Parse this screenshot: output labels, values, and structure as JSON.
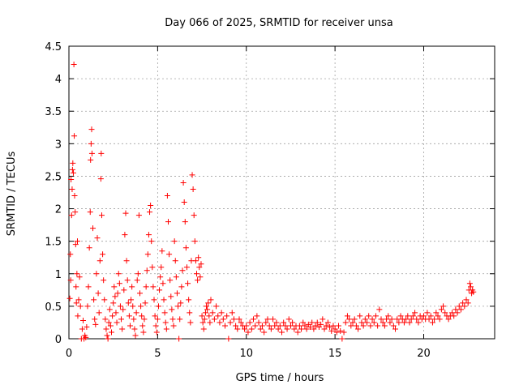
{
  "chart_data": {
    "type": "scatter",
    "title": "Day 066 of 2025, SRMTID for receiver unsa",
    "xlabel": "GPS time / hours",
    "ylabel": "SRMTID / TECUs",
    "xlim": [
      0,
      24
    ],
    "ylim": [
      0,
      4.5
    ],
    "xticks": [
      0,
      5,
      10,
      15,
      20
    ],
    "xtick_labels": [
      "0",
      "5",
      "10",
      "15",
      "20"
    ],
    "yticks": [
      0,
      0.5,
      1,
      1.5,
      2,
      2.5,
      3,
      3.5,
      4,
      4.5
    ],
    "ytick_labels": [
      "0",
      "0.5",
      "1",
      "1.5",
      "2",
      "2.5",
      "3",
      "3.5",
      "4",
      "4.5"
    ],
    "grid": true,
    "marker": "+",
    "color": "#ff0000",
    "series": [
      {
        "name": "SRMTID",
        "points": [
          [
            0.05,
            0.62
          ],
          [
            0.08,
            1.3
          ],
          [
            0.1,
            0.9
          ],
          [
            0.12,
            2.45
          ],
          [
            0.15,
            1.9
          ],
          [
            0.18,
            2.3
          ],
          [
            0.2,
            2.6
          ],
          [
            0.22,
            2.7
          ],
          [
            0.25,
            2.55
          ],
          [
            0.28,
            4.22
          ],
          [
            0.3,
            3.12
          ],
          [
            0.32,
            2.2
          ],
          [
            0.35,
            1.95
          ],
          [
            0.38,
            1.45
          ],
          [
            0.4,
            0.8
          ],
          [
            0.42,
            0.55
          ],
          [
            0.45,
            1.0
          ],
          [
            0.48,
            1.5
          ],
          [
            0.5,
            0.35
          ],
          [
            0.55,
            0.6
          ],
          [
            0.6,
            0.95
          ],
          [
            0.65,
            0.5
          ],
          [
            0.7,
            0.0
          ],
          [
            0.75,
            0.15
          ],
          [
            0.8,
            0.28
          ],
          [
            0.85,
            0.0
          ],
          [
            0.9,
            0.05
          ],
          [
            0.95,
            0.02
          ],
          [
            1.0,
            0.18
          ],
          [
            1.05,
            0.5
          ],
          [
            1.1,
            0.8
          ],
          [
            1.15,
            1.4
          ],
          [
            1.2,
            1.95
          ],
          [
            1.22,
            2.75
          ],
          [
            1.25,
            3.0
          ],
          [
            1.28,
            3.22
          ],
          [
            1.3,
            2.85
          ],
          [
            1.35,
            1.7
          ],
          [
            1.4,
            0.6
          ],
          [
            1.45,
            0.3
          ],
          [
            1.5,
            0.22
          ],
          [
            1.55,
            1.0
          ],
          [
            1.6,
            1.55
          ],
          [
            1.65,
            0.7
          ],
          [
            1.7,
            0.4
          ],
          [
            1.75,
            1.2
          ],
          [
            1.8,
            2.46
          ],
          [
            1.82,
            2.85
          ],
          [
            1.85,
            1.9
          ],
          [
            1.9,
            1.3
          ],
          [
            1.95,
            0.9
          ],
          [
            2.0,
            0.6
          ],
          [
            2.05,
            0.3
          ],
          [
            2.1,
            0.15
          ],
          [
            2.15,
            0.05
          ],
          [
            2.2,
            0.0
          ],
          [
            2.25,
            0.25
          ],
          [
            2.3,
            0.45
          ],
          [
            2.35,
            0.2
          ],
          [
            2.4,
            0.1
          ],
          [
            2.45,
            0.35
          ],
          [
            2.5,
            0.55
          ],
          [
            2.55,
            0.8
          ],
          [
            2.6,
            0.65
          ],
          [
            2.65,
            0.4
          ],
          [
            2.7,
            0.25
          ],
          [
            2.75,
            0.7
          ],
          [
            2.8,
            1.0
          ],
          [
            2.85,
            0.85
          ],
          [
            2.9,
            0.5
          ],
          [
            2.95,
            0.3
          ],
          [
            3.0,
            0.15
          ],
          [
            3.05,
            0.45
          ],
          [
            3.1,
            0.75
          ],
          [
            3.15,
            1.6
          ],
          [
            3.2,
            1.93
          ],
          [
            3.25,
            1.2
          ],
          [
            3.3,
            0.9
          ],
          [
            3.35,
            0.55
          ],
          [
            3.4,
            0.35
          ],
          [
            3.45,
            0.2
          ],
          [
            3.5,
            0.6
          ],
          [
            3.55,
            0.8
          ],
          [
            3.6,
            0.5
          ],
          [
            3.65,
            0.3
          ],
          [
            3.7,
            0.15
          ],
          [
            3.75,
            0.05
          ],
          [
            3.8,
            0.4
          ],
          [
            3.85,
            0.9
          ],
          [
            3.9,
            1.0
          ],
          [
            3.95,
            1.9
          ],
          [
            4.0,
            0.7
          ],
          [
            4.05,
            0.5
          ],
          [
            4.1,
            0.35
          ],
          [
            4.15,
            0.2
          ],
          [
            4.2,
            0.1
          ],
          [
            4.25,
            0.3
          ],
          [
            4.3,
            0.55
          ],
          [
            4.35,
            0.8
          ],
          [
            4.4,
            1.05
          ],
          [
            4.45,
            1.3
          ],
          [
            4.5,
            1.6
          ],
          [
            4.55,
            1.95
          ],
          [
            4.6,
            2.05
          ],
          [
            4.65,
            1.5
          ],
          [
            4.7,
            1.1
          ],
          [
            4.75,
            0.8
          ],
          [
            4.8,
            0.6
          ],
          [
            4.85,
            0.35
          ],
          [
            4.9,
            0.2
          ],
          [
            4.95,
            0.1
          ],
          [
            5.0,
            0.3
          ],
          [
            5.05,
            0.5
          ],
          [
            5.1,
            0.75
          ],
          [
            5.15,
            0.95
          ],
          [
            5.2,
            1.1
          ],
          [
            5.25,
            1.35
          ],
          [
            5.3,
            0.85
          ],
          [
            5.35,
            0.6
          ],
          [
            5.4,
            0.4
          ],
          [
            5.45,
            0.25
          ],
          [
            5.5,
            0.15
          ],
          [
            5.55,
            2.2
          ],
          [
            5.6,
            1.8
          ],
          [
            5.65,
            1.3
          ],
          [
            5.7,
            0.9
          ],
          [
            5.75,
            0.65
          ],
          [
            5.8,
            0.45
          ],
          [
            5.85,
            0.3
          ],
          [
            5.9,
            0.2
          ],
          [
            5.95,
            1.5
          ],
          [
            6.0,
            1.2
          ],
          [
            6.05,
            0.95
          ],
          [
            6.1,
            0.7
          ],
          [
            6.15,
            0.5
          ],
          [
            6.2,
            0.0
          ],
          [
            6.25,
            0.3
          ],
          [
            6.3,
            0.55
          ],
          [
            6.35,
            0.8
          ],
          [
            6.4,
            1.05
          ],
          [
            6.45,
            2.4
          ],
          [
            6.5,
            2.1
          ],
          [
            6.55,
            1.8
          ],
          [
            6.6,
            1.4
          ],
          [
            6.65,
            1.1
          ],
          [
            6.7,
            0.85
          ],
          [
            6.75,
            0.6
          ],
          [
            6.8,
            0.4
          ],
          [
            6.85,
            0.25
          ],
          [
            6.9,
            1.2
          ],
          [
            6.95,
            2.52
          ],
          [
            7.0,
            2.3
          ],
          [
            7.05,
            1.9
          ],
          [
            7.1,
            1.5
          ],
          [
            7.15,
            1.2
          ],
          [
            7.2,
            1.0
          ],
          [
            7.25,
            0.9
          ],
          [
            7.3,
            1.25
          ],
          [
            7.35,
            1.1
          ],
          [
            7.4,
            0.95
          ],
          [
            7.45,
            1.15
          ],
          [
            7.5,
            0.35
          ],
          [
            7.55,
            0.25
          ],
          [
            7.6,
            0.15
          ],
          [
            7.65,
            0.3
          ],
          [
            7.7,
            0.4
          ],
          [
            7.75,
            0.5
          ],
          [
            7.8,
            0.45
          ],
          [
            7.85,
            0.55
          ],
          [
            7.9,
            0.35
          ],
          [
            7.95,
            0.25
          ],
          [
            8.0,
            0.6
          ],
          [
            8.1,
            0.4
          ],
          [
            8.2,
            0.3
          ],
          [
            8.3,
            0.5
          ],
          [
            8.4,
            0.35
          ],
          [
            8.5,
            0.25
          ],
          [
            8.6,
            0.4
          ],
          [
            8.7,
            0.3
          ],
          [
            8.8,
            0.2
          ],
          [
            8.9,
            0.35
          ],
          [
            9.0,
            0.0
          ],
          [
            9.1,
            0.25
          ],
          [
            9.2,
            0.4
          ],
          [
            9.3,
            0.3
          ],
          [
            9.4,
            0.2
          ],
          [
            9.5,
            0.15
          ],
          [
            9.6,
            0.3
          ],
          [
            9.7,
            0.25
          ],
          [
            9.8,
            0.2
          ],
          [
            9.9,
            0.15
          ],
          [
            10.0,
            0.2
          ],
          [
            10.1,
            0.1
          ],
          [
            10.2,
            0.25
          ],
          [
            10.3,
            0.15
          ],
          [
            10.4,
            0.3
          ],
          [
            10.5,
            0.2
          ],
          [
            10.6,
            0.35
          ],
          [
            10.7,
            0.25
          ],
          [
            10.8,
            0.15
          ],
          [
            10.9,
            0.2
          ],
          [
            11.0,
            0.1
          ],
          [
            11.1,
            0.25
          ],
          [
            11.2,
            0.3
          ],
          [
            11.3,
            0.2
          ],
          [
            11.4,
            0.15
          ],
          [
            11.5,
            0.3
          ],
          [
            11.6,
            0.2
          ],
          [
            11.7,
            0.25
          ],
          [
            11.8,
            0.15
          ],
          [
            11.9,
            0.2
          ],
          [
            12.0,
            0.1
          ],
          [
            12.1,
            0.25
          ],
          [
            12.2,
            0.2
          ],
          [
            12.3,
            0.15
          ],
          [
            12.4,
            0.3
          ],
          [
            12.5,
            0.2
          ],
          [
            12.6,
            0.25
          ],
          [
            12.7,
            0.15
          ],
          [
            12.8,
            0.2
          ],
          [
            12.9,
            0.1
          ],
          [
            13.0,
            0.2
          ],
          [
            13.1,
            0.15
          ],
          [
            13.2,
            0.25
          ],
          [
            13.3,
            0.2
          ],
          [
            13.4,
            0.15
          ],
          [
            13.5,
            0.22
          ],
          [
            13.6,
            0.18
          ],
          [
            13.7,
            0.25
          ],
          [
            13.8,
            0.15
          ],
          [
            13.9,
            0.2
          ],
          [
            14.0,
            0.25
          ],
          [
            14.1,
            0.18
          ],
          [
            14.2,
            0.22
          ],
          [
            14.3,
            0.3
          ],
          [
            14.4,
            0.15
          ],
          [
            14.5,
            0.2
          ],
          [
            14.6,
            0.25
          ],
          [
            14.7,
            0.18
          ],
          [
            14.8,
            0.12
          ],
          [
            14.9,
            0.2
          ],
          [
            15.0,
            0.15
          ],
          [
            15.1,
            0.1
          ],
          [
            15.2,
            0.2
          ],
          [
            15.3,
            0.12
          ],
          [
            15.4,
            0.0
          ],
          [
            15.5,
            0.1
          ],
          [
            15.6,
            0.25
          ],
          [
            15.7,
            0.35
          ],
          [
            15.8,
            0.3
          ],
          [
            15.9,
            0.2
          ],
          [
            16.0,
            0.25
          ],
          [
            16.1,
            0.3
          ],
          [
            16.2,
            0.2
          ],
          [
            16.3,
            0.15
          ],
          [
            16.4,
            0.35
          ],
          [
            16.5,
            0.25
          ],
          [
            16.6,
            0.2
          ],
          [
            16.7,
            0.3
          ],
          [
            16.8,
            0.25
          ],
          [
            16.9,
            0.35
          ],
          [
            17.0,
            0.2
          ],
          [
            17.1,
            0.3
          ],
          [
            17.2,
            0.25
          ],
          [
            17.3,
            0.35
          ],
          [
            17.4,
            0.2
          ],
          [
            17.5,
            0.45
          ],
          [
            17.6,
            0.3
          ],
          [
            17.7,
            0.25
          ],
          [
            17.8,
            0.2
          ],
          [
            17.9,
            0.3
          ],
          [
            18.0,
            0.35
          ],
          [
            18.1,
            0.25
          ],
          [
            18.2,
            0.3
          ],
          [
            18.3,
            0.2
          ],
          [
            18.4,
            0.15
          ],
          [
            18.5,
            0.3
          ],
          [
            18.6,
            0.25
          ],
          [
            18.7,
            0.35
          ],
          [
            18.8,
            0.3
          ],
          [
            18.9,
            0.25
          ],
          [
            19.0,
            0.3
          ],
          [
            19.1,
            0.35
          ],
          [
            19.2,
            0.25
          ],
          [
            19.3,
            0.3
          ],
          [
            19.4,
            0.35
          ],
          [
            19.5,
            0.4
          ],
          [
            19.6,
            0.3
          ],
          [
            19.7,
            0.25
          ],
          [
            19.8,
            0.35
          ],
          [
            19.9,
            0.3
          ],
          [
            20.0,
            0.35
          ],
          [
            20.1,
            0.3
          ],
          [
            20.2,
            0.4
          ],
          [
            20.3,
            0.3
          ],
          [
            20.4,
            0.35
          ],
          [
            20.5,
            0.25
          ],
          [
            20.6,
            0.3
          ],
          [
            20.7,
            0.4
          ],
          [
            20.8,
            0.35
          ],
          [
            20.9,
            0.3
          ],
          [
            21.0,
            0.45
          ],
          [
            21.1,
            0.5
          ],
          [
            21.2,
            0.4
          ],
          [
            21.3,
            0.35
          ],
          [
            21.4,
            0.3
          ],
          [
            21.5,
            0.35
          ],
          [
            21.6,
            0.4
          ],
          [
            21.7,
            0.35
          ],
          [
            21.8,
            0.45
          ],
          [
            21.9,
            0.4
          ],
          [
            22.0,
            0.5
          ],
          [
            22.1,
            0.45
          ],
          [
            22.2,
            0.55
          ],
          [
            22.3,
            0.5
          ],
          [
            22.4,
            0.6
          ],
          [
            22.5,
            0.55
          ],
          [
            22.55,
            0.75
          ],
          [
            22.6,
            0.85
          ],
          [
            22.65,
            0.8
          ],
          [
            22.7,
            0.7
          ],
          [
            22.75,
            0.75
          ],
          [
            22.8,
            0.72
          ]
        ]
      }
    ]
  }
}
